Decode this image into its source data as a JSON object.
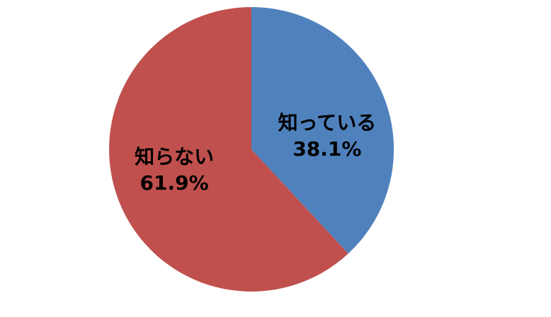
{
  "chart_data": {
    "type": "pie",
    "title": "",
    "categories": [
      "知っている",
      "知らない"
    ],
    "values": [
      38.1,
      61.9
    ],
    "value_labels": [
      "38.1%",
      "61.9%"
    ],
    "colors": [
      "#4F81BD",
      "#C0504D"
    ],
    "start_angle_deg": 0,
    "direction": "clockwise",
    "legend_position": "none",
    "labels_inside": true,
    "background_color": "#FFFFFF",
    "label_text_color": "#000000"
  }
}
